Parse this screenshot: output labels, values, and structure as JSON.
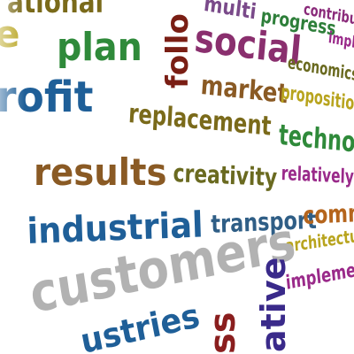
{
  "words": [
    {
      "id": "ational",
      "text": "ational",
      "color": "#7a6a1a"
    },
    {
      "id": "e",
      "text": "e",
      "color": "#b8a41e"
    },
    {
      "id": "plan",
      "text": "plan",
      "color": "#2f8a3a"
    },
    {
      "id": "follo",
      "text": "follo",
      "color": "#7a1e14"
    },
    {
      "id": "multi",
      "text": "multi",
      "color": "#7a4a8a"
    },
    {
      "id": "contribu",
      "text": "contribu",
      "color": "#8a2a7a"
    },
    {
      "id": "progress",
      "text": "progress",
      "color": "#2e7f3a"
    },
    {
      "id": "impl",
      "text": "impl",
      "color": "#9a2a8a"
    },
    {
      "id": "social",
      "text": "social",
      "color": "#8a2f6e"
    },
    {
      "id": "economics",
      "text": "economics",
      "color": "#6a6a20"
    },
    {
      "id": "rofit",
      "text": "rofit",
      "color": "#1f5f98"
    },
    {
      "id": "market",
      "text": "market",
      "color": "#8a5a24"
    },
    {
      "id": "propositio",
      "text": "propositio",
      "color": "#b8a41e"
    },
    {
      "id": "replacement",
      "text": "replacement",
      "color": "#7a6a1a"
    },
    {
      "id": "technolo",
      "text": "technolo",
      "color": "#2f8a3a"
    },
    {
      "id": "results",
      "text": "results",
      "color": "#8a5a24"
    },
    {
      "id": "creativity",
      "text": "creativity",
      "color": "#6a6a20"
    },
    {
      "id": "relatively",
      "text": "relatively",
      "color": "#9a2a8a"
    },
    {
      "id": "industrial",
      "text": "industrial",
      "color": "#1f5f98"
    },
    {
      "id": "transport",
      "text": "transport",
      "color": "#2f5e86"
    },
    {
      "id": "comm",
      "text": "comm",
      "color": "#b5651d"
    },
    {
      "id": "architectu",
      "text": "architectu",
      "color": "#b8a41e"
    },
    {
      "id": "customers",
      "text": "customers",
      "color": "#b2b2b2"
    },
    {
      "id": "ative",
      "text": "ative",
      "color": "#3a2a8a"
    },
    {
      "id": "impleme",
      "text": "impleme",
      "color": "#9a2a8a"
    },
    {
      "id": "ss",
      "text": "ss",
      "color": "#8a1e1e"
    },
    {
      "id": "ustries",
      "text": "ustries",
      "color": "#1f5f98"
    }
  ]
}
